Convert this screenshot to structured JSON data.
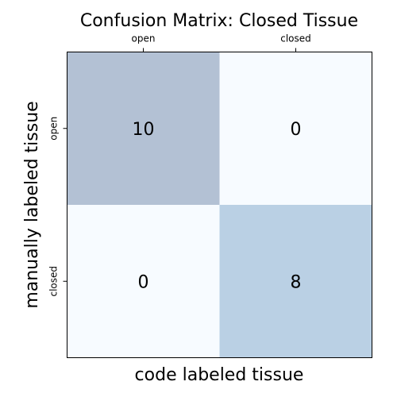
{
  "chart_data": {
    "type": "heatmap",
    "title": "Confusion Matrix: Closed Tissue",
    "xlabel": "code labeled tissue",
    "ylabel": "manually labeled tissue",
    "x_tick_labels": [
      "open",
      "closed"
    ],
    "y_tick_labels": [
      "open",
      "closed"
    ],
    "x_tick_position": "top",
    "grid": false,
    "legend": "none",
    "matrix": [
      [
        10,
        0
      ],
      [
        0,
        8
      ]
    ],
    "cell_colors": [
      [
        "#b3c1d4",
        "#f7fbff"
      ],
      [
        "#f7fbff",
        "#bad0e4"
      ]
    ]
  }
}
